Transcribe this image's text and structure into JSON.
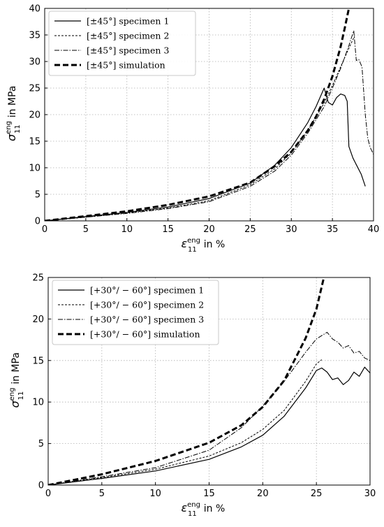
{
  "chart_data": [
    {
      "type": "line",
      "xlabel": "in %",
      "xsymbol": "ε",
      "ylabel": "in MPa",
      "ysymbol": "σ",
      "sub": "11",
      "sup": "eng",
      "xlim": [
        0,
        40
      ],
      "ylim": [
        0,
        40
      ],
      "xticks": [
        0,
        5,
        10,
        15,
        20,
        25,
        30,
        35,
        40
      ],
      "yticks": [
        0,
        5,
        10,
        15,
        20,
        25,
        30,
        35,
        40
      ],
      "grid": true,
      "legend_position": "top-left",
      "series": [
        {
          "name": "[±45°] specimen 1",
          "style": "solid",
          "x": [
            0,
            5,
            10,
            15,
            20,
            25,
            28,
            30,
            32,
            33,
            34,
            34.5,
            35,
            35.5,
            36,
            36.5,
            36.8,
            37,
            37.5,
            38,
            38.5,
            39
          ],
          "y": [
            0,
            0.8,
            1.6,
            2.6,
            4.2,
            7.1,
            10.5,
            13.8,
            18.5,
            21.5,
            25,
            22.3,
            21.8,
            23.2,
            23.9,
            23.6,
            22.5,
            14,
            11.8,
            10.3,
            8.8,
            6.5
          ]
        },
        {
          "name": "[±45°] specimen 2",
          "style": "dashed",
          "x": [
            0,
            5,
            10,
            15,
            20,
            25,
            28,
            30,
            32,
            34,
            35,
            36,
            37,
            37.7
          ],
          "y": [
            0,
            0.7,
            1.5,
            2.4,
            3.8,
            6.8,
            9.8,
            12.8,
            17,
            22.2,
            25.5,
            29,
            32.5,
            34.8
          ]
        },
        {
          "name": "[±45°] specimen 3",
          "style": "dashdot",
          "x": [
            0,
            5,
            10,
            15,
            20,
            25,
            28,
            30,
            32,
            34,
            35,
            36,
            37,
            37.6,
            37.9,
            38.2,
            38.6,
            39,
            39.3,
            39.6,
            40
          ],
          "y": [
            0,
            0.7,
            1.4,
            2.3,
            3.6,
            6.5,
            9.4,
            12.4,
            16.5,
            21.5,
            25,
            28.7,
            33,
            35.8,
            30.2,
            30.4,
            29,
            20,
            15.5,
            13.8,
            12.5
          ]
        },
        {
          "name": "[±45°] simulation",
          "style": "thickdashed",
          "x": [
            0,
            5,
            10,
            15,
            20,
            25,
            28,
            30,
            32,
            33,
            34,
            35,
            36,
            36.5,
            37
          ],
          "y": [
            0,
            0.9,
            1.8,
            3,
            4.6,
            7.2,
            10.3,
            13,
            17,
            19.6,
            22.9,
            27.2,
            32.8,
            36.3,
            40
          ]
        }
      ]
    },
    {
      "type": "line",
      "xlabel": "in %",
      "xsymbol": "ε",
      "ylabel": "in MPa",
      "ysymbol": "σ",
      "sub": "11",
      "sup": "eng",
      "xlim": [
        0,
        30
      ],
      "ylim": [
        0,
        25
      ],
      "xticks": [
        0,
        5,
        10,
        15,
        20,
        25,
        30
      ],
      "yticks": [
        0,
        5,
        10,
        15,
        20,
        25
      ],
      "grid": true,
      "legend_position": "top-left",
      "series": [
        {
          "name": "[+30°/ − 60°] specimen 1",
          "style": "solid",
          "x": [
            0,
            5,
            10,
            15,
            18,
            20,
            22,
            24,
            25,
            25.5,
            26,
            26.5,
            27,
            27.5,
            28,
            28.5,
            29,
            29.5,
            30
          ],
          "y": [
            0,
            0.8,
            1.7,
            3.1,
            4.6,
            6,
            8.3,
            11.7,
            13.8,
            14.1,
            13.6,
            12.7,
            12.9,
            12.1,
            12.6,
            13.6,
            13.1,
            14.2,
            13.5
          ]
        },
        {
          "name": "[+30°/ − 60°] specimen 2",
          "style": "dashed",
          "x": [
            0,
            5,
            10,
            15,
            18,
            20,
            22,
            24,
            25,
            25.5
          ],
          "y": [
            0,
            0.9,
            1.9,
            3.5,
            5.1,
            6.7,
            9,
            12.5,
            14.6,
            15.1
          ]
        },
        {
          "name": "[+30°/ − 60°] specimen 3",
          "style": "dashdot",
          "x": [
            0,
            5,
            10,
            15,
            18,
            20,
            22,
            24,
            25,
            26,
            26.5,
            27,
            27.5,
            28,
            28.5,
            29,
            29.5,
            30
          ],
          "y": [
            0,
            1,
            2.1,
            4.2,
            6.9,
            9.5,
            12.5,
            16,
            17.6,
            18.4,
            17.6,
            17.2,
            16.5,
            16.8,
            15.9,
            16.1,
            15.3,
            15
          ]
        },
        {
          "name": "[+30°/ − 60°] simulation",
          "style": "thickdashed",
          "x": [
            0,
            5,
            10,
            15,
            18,
            20,
            22,
            24,
            25,
            25.7
          ],
          "y": [
            0,
            1.3,
            2.9,
            5.1,
            7.2,
            9.4,
            12.6,
            17.7,
            21.2,
            25
          ]
        }
      ]
    }
  ]
}
